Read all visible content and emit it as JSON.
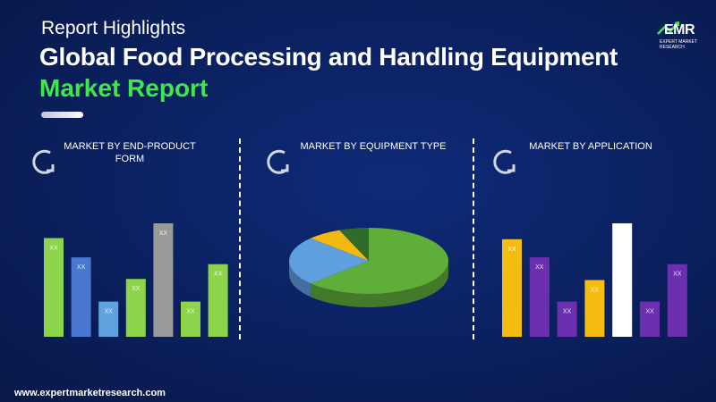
{
  "header": {
    "subtitle": "Report Highlights",
    "title_line1": "Global Food Processing and Handling Equipment",
    "title_line2": "Market Report"
  },
  "logo": {
    "text": "EMR",
    "tagline": "EXPERT MARKET RESEARCH"
  },
  "sections": {
    "end_product": "MARKET BY END-PRODUCT FORM",
    "equipment": "MARKET BY EQUIPMENT TYPE",
    "application": "MARKET BY APPLICATION"
  },
  "footer": {
    "url": "www.expertmarketresearch.com"
  },
  "colors": {
    "background": "#0a1f5c",
    "title_accent": "#3ee84a",
    "green": "#8ed44a",
    "blue": "#4a78d0",
    "light_blue": "#5ea3de",
    "gray": "#9a9a9a",
    "yellow": "#f5bd12",
    "purple": "#6b2fb0",
    "white": "#ffffff",
    "pie_green": "#5fae3a",
    "pie_blue": "#5e9fe0",
    "pie_yellow": "#f2b90e",
    "pie_dark_green": "#2f6b2a"
  },
  "chart_data": [
    {
      "type": "bar",
      "title": "MARKET BY END-PRODUCT FORM",
      "categories": [
        "",
        "",
        "",
        "",
        "",
        "",
        ""
      ],
      "values": [
        87,
        70,
        31,
        51,
        100,
        31,
        64
      ],
      "labels": [
        "XX",
        "XX",
        "XX",
        "XX",
        "XX",
        "XX",
        "XX"
      ],
      "colors": [
        "#8ed44a",
        "#4a78d0",
        "#5ea3de",
        "#8ed44a",
        "#9a9a9a",
        "#8ed44a",
        "#8ed44a"
      ],
      "ylim": [
        0,
        100
      ]
    },
    {
      "type": "pie",
      "title": "MARKET BY EQUIPMENT TYPE",
      "values": [
        63,
        24,
        7,
        6
      ],
      "colors": [
        "#5fae3a",
        "#5e9fe0",
        "#f2b90e",
        "#2f6b2a"
      ]
    },
    {
      "type": "bar",
      "title": "MARKET BY APPLICATION",
      "categories": [
        "",
        "",
        "",
        "",
        "",
        "",
        ""
      ],
      "values": [
        86,
        70,
        31,
        50,
        100,
        31,
        64
      ],
      "labels": [
        "XX",
        "XX",
        "XX",
        "XX",
        "XX",
        "XX",
        "XX"
      ],
      "colors": [
        "#f5bd12",
        "#6b2fb0",
        "#6b2fb0",
        "#f5bd12",
        "#ffffff",
        "#6b2fb0",
        "#6b2fb0"
      ],
      "ylim": [
        0,
        100
      ]
    }
  ]
}
